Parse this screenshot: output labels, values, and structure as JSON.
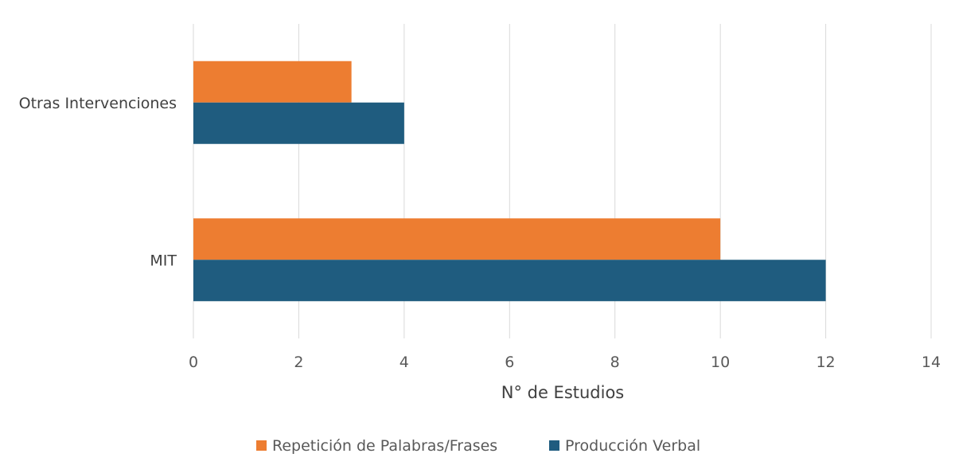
{
  "chart_data": {
    "type": "bar",
    "orientation": "horizontal",
    "title": "",
    "xlabel": "N° de Estudios",
    "ylabel": "",
    "xlim": [
      0,
      14
    ],
    "xticks": [
      "0",
      "2",
      "4",
      "6",
      "8",
      "10",
      "12",
      "14"
    ],
    "grid": "vertical",
    "legend_position": "bottom",
    "categories": [
      "Otras Intervenciones",
      "MIT"
    ],
    "series": [
      {
        "name": "Repetición de Palabras/Frases",
        "color": "#ED7D31",
        "values": [
          3,
          10
        ]
      },
      {
        "name": "Producción Verbal",
        "color": "#1F5C7F",
        "values": [
          4,
          12
        ]
      }
    ]
  }
}
